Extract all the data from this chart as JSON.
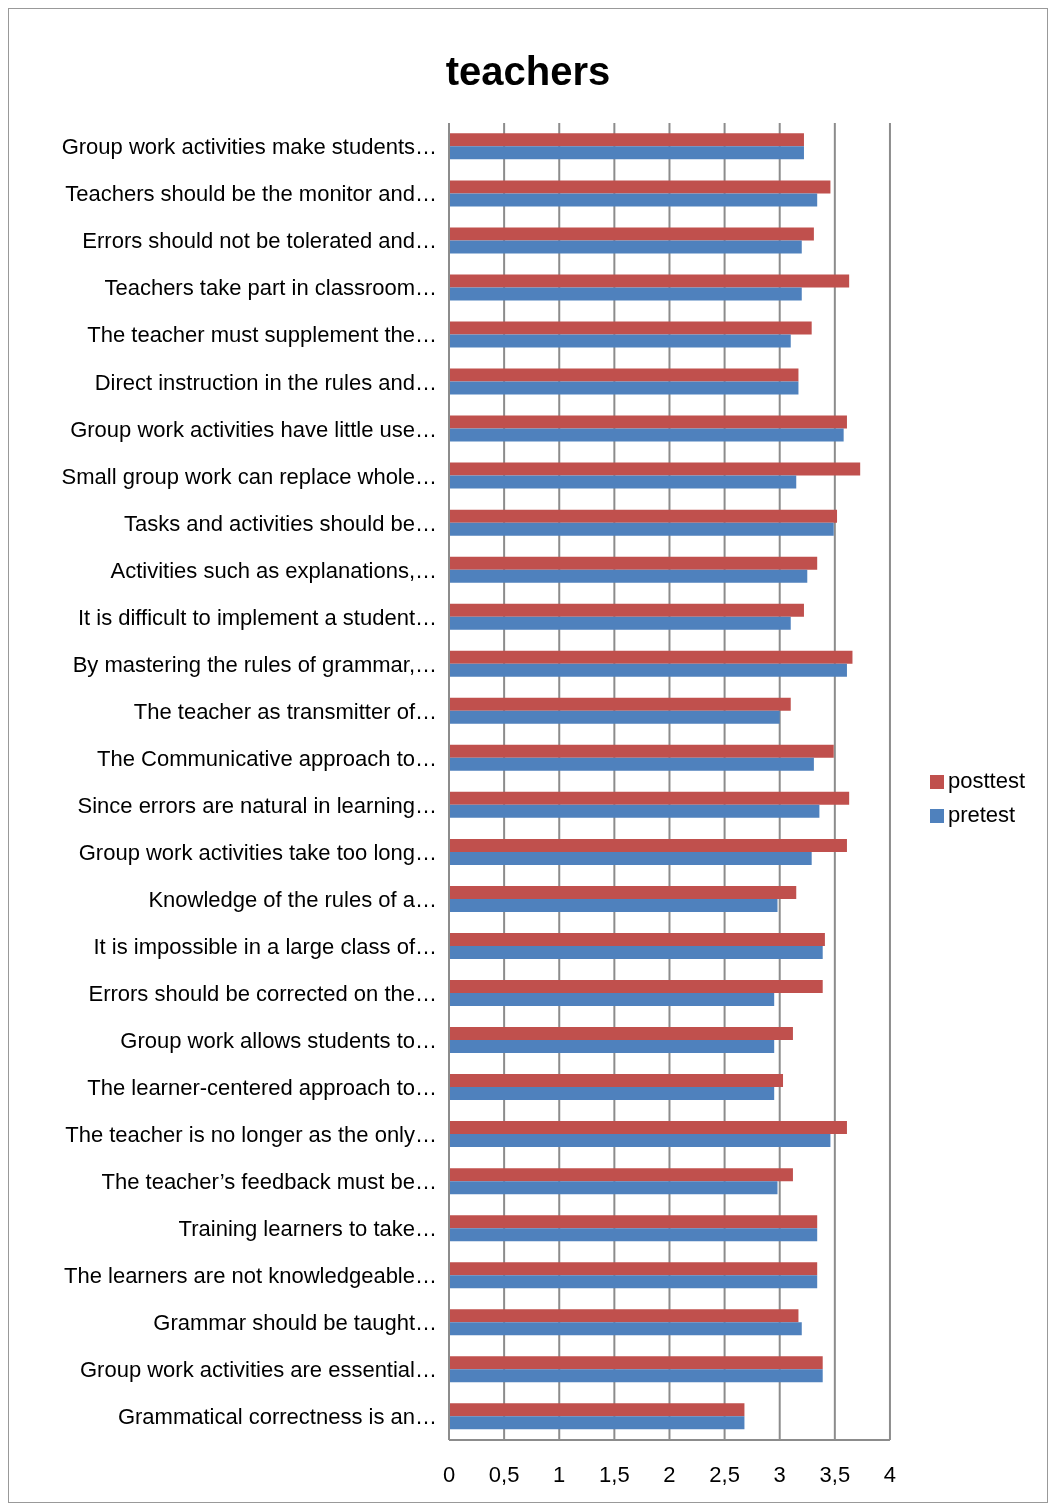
{
  "chart_data": {
    "type": "bar",
    "orientation": "horizontal",
    "title": "teachers",
    "categories": [
      "Group work activities make students…",
      "Teachers should be the monitor and…",
      "Errors should not be tolerated and…",
      "Teachers take part in classroom…",
      "The teacher must supplement the…",
      "Direct instruction in the rules and…",
      "Group work activities have little use…",
      "Small group work can replace whole…",
      "Tasks and activities should be…",
      "Activities such as explanations,…",
      "It is difficult to implement a student…",
      "By mastering the rules of grammar,…",
      "The teacher as transmitter of…",
      "The Communicative approach to…",
      "Since errors are natural in learning…",
      "Group work activities take too long…",
      "Knowledge of the rules of a…",
      "It is impossible in a large class of…",
      "Errors should be corrected on the…",
      "Group work allows students to…",
      "The learner-centered approach to…",
      "The teacher is no longer as the only…",
      "The teacher’s feedback must be…",
      "Training learners to take…",
      "The learners are not knowledgeable…",
      "Grammar should be taught…",
      "Group work activities are essential…",
      "Grammatical correctness is an…"
    ],
    "series": [
      {
        "name": "posttest",
        "color": "#c0504d",
        "values": [
          3.22,
          3.46,
          3.31,
          3.63,
          3.29,
          3.17,
          3.61,
          3.73,
          3.52,
          3.34,
          3.22,
          3.66,
          3.1,
          3.49,
          3.63,
          3.61,
          3.15,
          3.41,
          3.39,
          3.12,
          3.03,
          3.61,
          3.12,
          3.34,
          3.34,
          3.17,
          3.39,
          2.68
        ]
      },
      {
        "name": "pretest",
        "color": "#4f81bd",
        "values": [
          3.22,
          3.34,
          3.2,
          3.2,
          3.1,
          3.17,
          3.58,
          3.15,
          3.49,
          3.25,
          3.1,
          3.61,
          3.0,
          3.31,
          3.36,
          3.29,
          2.98,
          3.39,
          2.95,
          2.95,
          2.95,
          3.46,
          2.98,
          3.34,
          3.34,
          3.2,
          3.39,
          2.68
        ]
      }
    ],
    "xlim": [
      0,
      4
    ],
    "xticks": [
      0,
      {
        "value": 0.5,
        "label": "0,5"
      },
      1,
      {
        "value": 1.5,
        "label": "1,5"
      },
      2,
      {
        "value": 2.5,
        "label": "2,5"
      },
      3,
      {
        "value": 3.5,
        "label": "3,5"
      },
      4
    ],
    "grid": "x",
    "legend": "right"
  }
}
